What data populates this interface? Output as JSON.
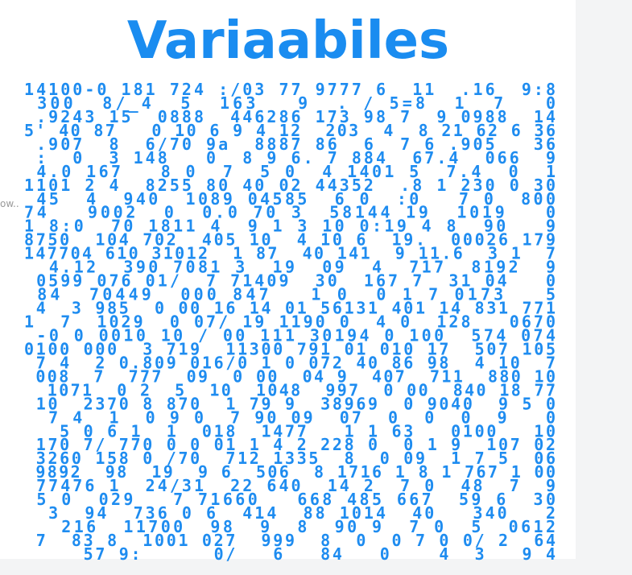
{
  "header": {
    "title": "Variaabiles"
  },
  "side_text": "ow..",
  "rows": [
    "14100-0 181 724 :/03 77 9777 6  11  .16  9:8",
    " 300  8/_4  5  163   9  . / 5=8  1  7   0",
    " .9243 15  0888  446286 173 98 7  9 0988  14",
    "5' 40 87   0 10 6 9 4 12  203  4  8 21 62 6 36",
    " .907  8  6/70 9a  8887 86  6  7 6 .905   36",
    " :  0  3 148   0  8 9 6. 7 884  67.4  066  9",
    " 4.0 167   8 0  7  5 0  4 1401 5  7.4  0  1",
    "1101 2 4  8255 80 40 02 44352  .8 1 230 0 30",
    " 45  4  940  1089 04585  6 0  :0   7 0  800",
    "74   9002  0  0.0 70 3  58144 19  1019   0",
    "1 8:0  70 1811 4  9 1 3 10 0:19 4 8  90   9",
    "8750  104 702  405 10  4 10 6  19.  00026 179",
    "147704 610 31012  1 87  40 141  9 11.6  3 1  7",
    "  4.12  390 7081 3  19  09  4  717  8192  9",
    " 0599 076 01/  7 71409  30  167 7  31 04   0",
    " 84  70449  000 847   1 0  0 1 7 0173   5",
    " 4  3 985  0 00 16 14 01 56131 401 14 831 771",
    "1  7  1029  0 07/ 19 1190 0  4 0  128   0670",
    " -0 0 0010 10 / 00 111 30194 0 100  574 074",
    "0100 000  3 719  11300 791 01 010 17  507 105",
    " 7 4  2 0.809 016/0 1 0 072 40 86 98  4 10  7",
    " 008  7  777  09  0 00  04 9  407  711  880 10",
    "  1071  0 2  5  10  1048  997  0 00  840 18 77",
    " 10  2370 8 870  1 79 9  38969  0 9040  9 5 0",
    "  7 4  1  0 9 0  7 90 09  07  0  0  0  9   0",
    "   5 0 6 1  1  018  1477   1 1 63   0100   10",
    " 170 7/ 770 0 0 01 1 4 2 228 0  0 1 9  107 02",
    " 3260 158 0 /70  712 1335  8  0 09  1 7 5  06",
    " 9892  98  19  9 6  506  8 1716 1 8 1 767 1 00",
    " 77476 1  24/31  22 640  14 2  7 0  48  7  9",
    " 5 0  029   7 71660   668 485 667  59 6  30",
    "  3  94  736 0 6  414  88 1014  40   340   2",
    "   216  11700  98  9  8  90 9  7 0  5  0612",
    " 7  83 8  1001 027  999  8  0  0 7 0 0/ 2  64",
    "     57 9:      0/   6   84   0    4  3   9 4"
  ]
}
